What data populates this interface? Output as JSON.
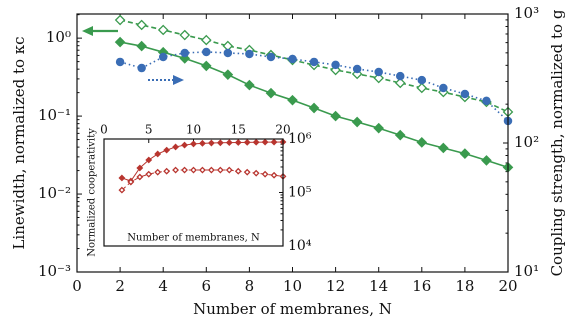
{
  "chart_data": [
    {
      "type": "line",
      "xlabel": "Number of membranes, N",
      "ylabel": "Linewidth, normalized to κc",
      "y2label": "Coupling strength, normalized to g",
      "x": [
        2,
        3,
        4,
        5,
        6,
        7,
        8,
        9,
        10,
        11,
        12,
        13,
        14,
        15,
        16,
        17,
        18,
        19,
        20
      ],
      "xlim": [
        0,
        20
      ],
      "xticks": [
        0,
        2,
        4,
        6,
        8,
        10,
        12,
        14,
        16,
        18,
        20
      ],
      "ylim": [
        0.001,
        2.04
      ],
      "yscale": "log",
      "yticks": [
        {
          "value": 0.001,
          "label": "10⁻³"
        },
        {
          "value": 0.01,
          "label": "10⁻²"
        },
        {
          "value": 0.1,
          "label": "10⁻¹"
        },
        {
          "value": 1,
          "label": "10⁰"
        }
      ],
      "y2lim": [
        10,
        1000
      ],
      "y2scale": "log",
      "y2ticks": [
        {
          "value": 10,
          "label": "10¹"
        },
        {
          "value": 100,
          "label": "10²"
        },
        {
          "value": 1000,
          "label": "10³"
        }
      ],
      "series": [
        {
          "color": "#3a9a4e",
          "marker": "diamond",
          "fill": "filled",
          "linestyle": "solid",
          "axis": "y",
          "values": [
            0.89,
            0.79,
            0.66,
            0.55,
            0.44,
            0.34,
            0.25,
            0.197,
            0.16,
            0.127,
            0.1,
            0.084,
            0.07,
            0.057,
            0.046,
            0.039,
            0.033,
            0.027,
            0.022
          ]
        },
        {
          "color": "#3a9a4e",
          "marker": "diamond",
          "fill": "open",
          "linestyle": "dashed",
          "axis": "y2",
          "values": [
            898,
            822,
            752,
            687,
            628,
            565,
            526,
            481,
            440,
            402,
            368,
            343,
            319,
            292,
            267,
            248,
            227,
            208,
            174
          ]
        },
        {
          "color": "#3a6db5",
          "marker": "circle",
          "fill": "filled",
          "linestyle": "dotted",
          "axis": "y2",
          "values": [
            425,
            381,
            464,
            499,
            508,
            499,
            490,
            464,
            448,
            425,
            403,
            375,
            355,
            330,
            307,
            267,
            240,
            212,
            148
          ]
        }
      ]
    },
    {
      "type": "line",
      "xlabel": "Number of membranes, N",
      "ylabel": "Normalized cooperativity",
      "x": [
        2,
        3,
        4,
        5,
        6,
        7,
        8,
        9,
        10,
        11,
        12,
        13,
        14,
        15,
        16,
        17,
        18,
        19,
        20
      ],
      "xlim": [
        0,
        20
      ],
      "xticks": [
        0,
        5,
        10,
        15,
        20
      ],
      "ylim": [
        10000,
        1000000
      ],
      "yscale": "log",
      "yticks": [
        {
          "value": 10000,
          "label": "10⁴"
        },
        {
          "value": 100000,
          "label": "10⁵"
        },
        {
          "value": 1000000,
          "label": "10⁶"
        }
      ],
      "series": [
        {
          "color": "#b8352f",
          "marker": "diamond",
          "fill": "filled",
          "linestyle": "solid",
          "axis": "y",
          "values": [
            187000,
            164000,
            287000,
            405000,
            525000,
            620000,
            710000,
            770000,
            810000,
            830000,
            840000,
            850000,
            855000,
            860000,
            865000,
            870000,
            875000,
            875000,
            880000
          ]
        },
        {
          "color": "#b8352f",
          "marker": "diamond",
          "fill": "open",
          "linestyle": "dashed",
          "axis": "y",
          "values": [
            111000,
            157000,
            195000,
            220000,
            240000,
            250000,
            263000,
            263000,
            263000,
            263000,
            263000,
            263000,
            263000,
            250000,
            240000,
            230000,
            220000,
            210000,
            200000
          ]
        }
      ]
    }
  ]
}
